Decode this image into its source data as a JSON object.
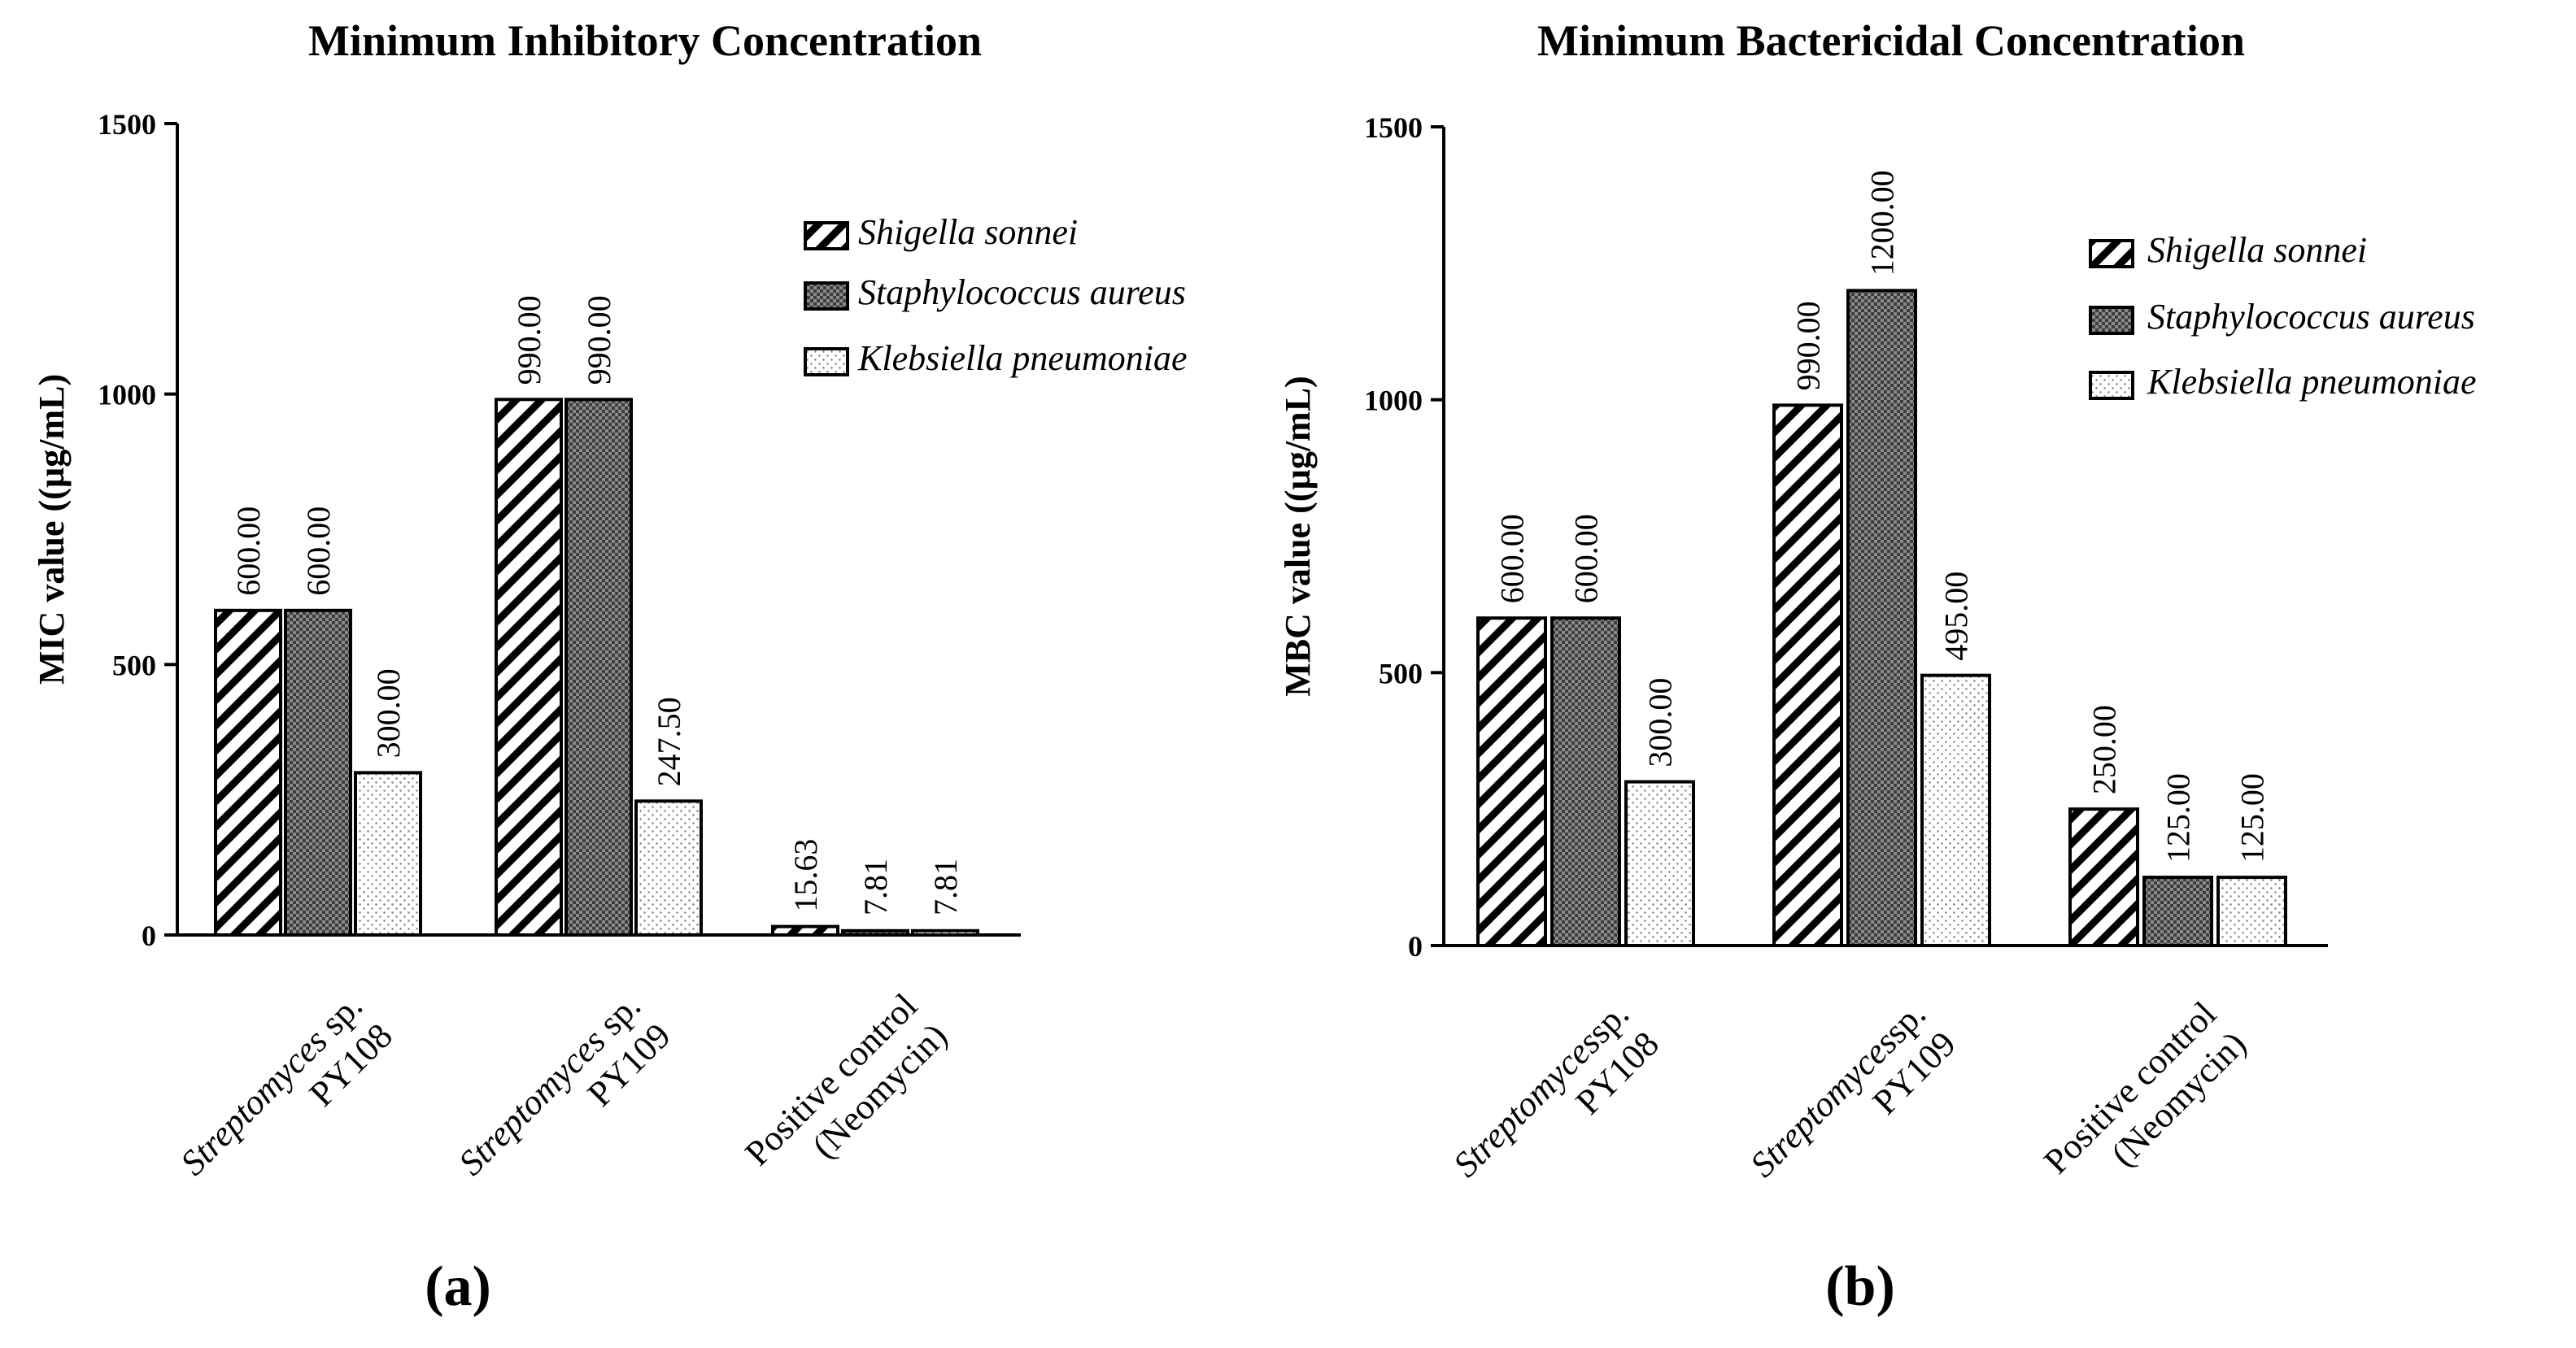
{
  "chart_data": [
    {
      "type": "bar",
      "title": "Minimum Inhibitory Concentration",
      "ylabel": "MIC value ((µg/mL)",
      "xlabel": "",
      "panel_label": "(a)",
      "ylim": [
        0,
        1500
      ],
      "yticks": [
        0,
        500,
        1000,
        1500
      ],
      "categories": [
        {
          "italic": "Streptomyces",
          "rest": " sp.",
          "line2": "PY108"
        },
        {
          "italic": "Streptomyces",
          "rest": " sp.",
          "line2": "PY109"
        },
        {
          "italic": "",
          "rest": "Positive control",
          "line2": "(Neomycin)"
        }
      ],
      "series": [
        {
          "name": "Shigella sonnei",
          "pattern": "diag",
          "values": [
            600,
            990,
            15.63
          ],
          "labels": [
            "600.00",
            "990.00",
            "15.63"
          ]
        },
        {
          "name": "Staphylococcus aureus",
          "pattern": "check",
          "values": [
            600,
            990,
            7.81
          ],
          "labels": [
            "600.00",
            "990.00",
            "7.81"
          ]
        },
        {
          "name": "Klebsiella pneumoniae",
          "pattern": "dots",
          "values": [
            300,
            247.5,
            7.81
          ],
          "labels": [
            "300.00",
            "247.50",
            "7.81"
          ]
        }
      ],
      "legend_position": "top-right"
    },
    {
      "type": "bar",
      "title": "Minimum Bactericidal Concentration",
      "ylabel": "MBC value ((µg/mL)",
      "xlabel": "",
      "panel_label": "(b)",
      "ylim": [
        0,
        1500
      ],
      "yticks": [
        0,
        500,
        1000,
        1500
      ],
      "categories": [
        {
          "italic": "Streptomyces",
          "rest": "sp.",
          "line2": "PY108"
        },
        {
          "italic": "Streptomyces",
          "rest": "sp.",
          "line2": "PY109"
        },
        {
          "italic": "",
          "rest": "Positive control",
          "line2": "(Neomycin)"
        }
      ],
      "series": [
        {
          "name": "Shigella sonnei",
          "pattern": "diag",
          "values": [
            600,
            990,
            250
          ],
          "labels": [
            "600.00",
            "990.00",
            "250.00"
          ]
        },
        {
          "name": "Staphylococcus aureus",
          "pattern": "check",
          "values": [
            600,
            1200,
            125
          ],
          "labels": [
            "600.00",
            "1200.00",
            "125.00"
          ]
        },
        {
          "name": "Klebsiella pneumoniae",
          "pattern": "dots",
          "values": [
            300,
            495,
            125
          ],
          "labels": [
            "300.00",
            "495.00",
            "125.00"
          ]
        }
      ],
      "legend_position": "top-right"
    }
  ]
}
